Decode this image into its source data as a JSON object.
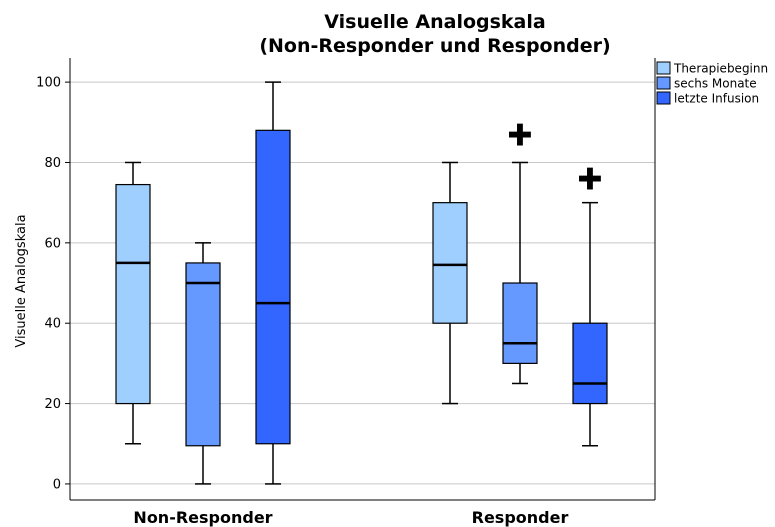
{
  "chart_data": {
    "type": "box",
    "title_lines": [
      "Visuelle Analogskala",
      "(Non-Responder und Responder)"
    ],
    "ylabel": "Visuelle Analogskala",
    "ylim": [
      -4,
      106
    ],
    "yticks": [
      0,
      20,
      40,
      60,
      80,
      100
    ],
    "grid": true,
    "legend_position": "top-right",
    "categories": [
      "Non-Responder",
      "Responder"
    ],
    "series": [
      {
        "name": "Therapiebeginn",
        "color": "#9FCFFF",
        "boxes": [
          {
            "min": 10,
            "q1": 20,
            "median": 55,
            "q3": 74.5,
            "max": 80,
            "outliers": []
          },
          {
            "min": 20,
            "q1": 40,
            "median": 54.5,
            "q3": 70,
            "max": 80,
            "outliers": []
          }
        ]
      },
      {
        "name": "sechs Monate",
        "color": "#6699FF",
        "boxes": [
          {
            "min": 0,
            "q1": 9.5,
            "median": 50,
            "q3": 55,
            "max": 60,
            "outliers": []
          },
          {
            "min": 25,
            "q1": 30,
            "median": 35,
            "q3": 50,
            "max": 80,
            "outliers": [
              87
            ]
          }
        ]
      },
      {
        "name": "letzte Infusion",
        "color": "#3366FF",
        "boxes": [
          {
            "min": 0,
            "q1": 10,
            "median": 45,
            "q3": 88,
            "max": 100,
            "outliers": []
          },
          {
            "min": 9.5,
            "q1": 20,
            "median": 25,
            "q3": 40,
            "max": 70,
            "outliers": [
              76
            ]
          }
        ]
      }
    ],
    "outlier_symbol": "✚"
  }
}
